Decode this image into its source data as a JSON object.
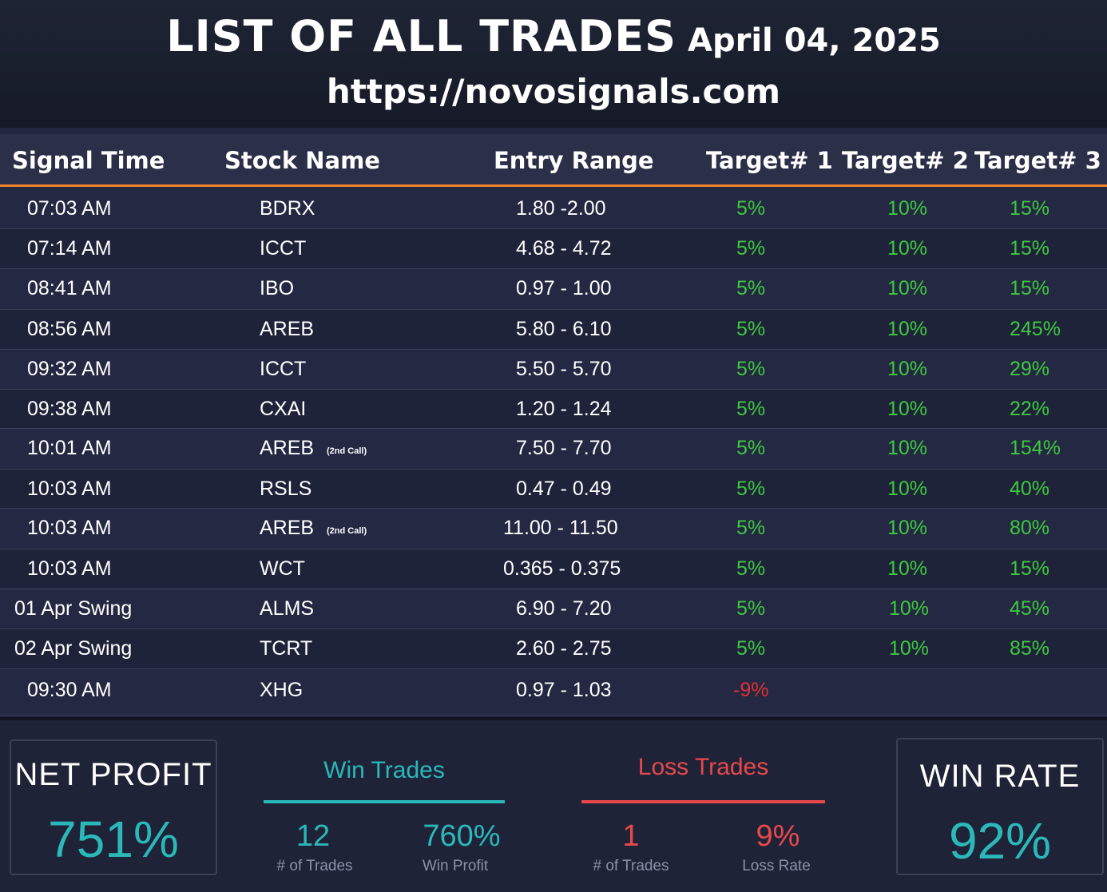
{
  "header": {
    "title": "LIST OF ALL TRADES",
    "date": "April 04, 2025",
    "url": "https://novosignals.com"
  },
  "table": {
    "columns": [
      "Signal Time",
      "Stock Name",
      "Entry Range",
      "Target# 1",
      "Target# 2",
      "Target# 3"
    ],
    "rows": [
      {
        "time": "07:03 AM",
        "stock": "BDRX",
        "note": "",
        "entry": "1.80 -2.00",
        "t1": "5%",
        "t2": "10%",
        "t3": "15%"
      },
      {
        "time": "07:14 AM",
        "stock": "ICCT",
        "note": "",
        "entry": "4.68 - 4.72",
        "t1": "5%",
        "t2": "10%",
        "t3": "15%"
      },
      {
        "time": "08:41 AM",
        "stock": "IBO",
        "note": "",
        "entry": "0.97 - 1.00",
        "t1": "5%",
        "t2": "10%",
        "t3": "15%"
      },
      {
        "time": "08:56 AM",
        "stock": "AREB",
        "note": "",
        "entry": "5.80 - 6.10",
        "t1": "5%",
        "t2": "10%",
        "t3": "245%"
      },
      {
        "time": "09:32 AM",
        "stock": "ICCT",
        "note": "",
        "entry": "5.50 - 5.70",
        "t1": "5%",
        "t2": "10%",
        "t3": "29%"
      },
      {
        "time": "09:38 AM",
        "stock": "CXAI",
        "note": "",
        "entry": "1.20 - 1.24",
        "t1": "5%",
        "t2": "10%",
        "t3": "22%"
      },
      {
        "time": "10:01 AM",
        "stock": "AREB",
        "note": "(2nd Call)",
        "entry": "7.50 - 7.70",
        "t1": "5%",
        "t2": "10%",
        "t3": "154%"
      },
      {
        "time": "10:03 AM",
        "stock": "RSLS",
        "note": "",
        "entry": "0.47 - 0.49",
        "t1": "5%",
        "t2": "10%",
        "t3": "40%"
      },
      {
        "time": "10:03 AM",
        "stock": "AREB",
        "note": "(2nd Call)",
        "entry": "11.00 - 11.50",
        "t1": "5%",
        "t2": "10%",
        "t3": "80%"
      },
      {
        "time": "10:03 AM",
        "stock": "WCT",
        "note": "",
        "entry": "0.365 - 0.375",
        "t1": "5%",
        "t2": "10%",
        "t3": "15%"
      },
      {
        "time": "01 Apr Swing",
        "stock": "ALMS",
        "note": "",
        "entry": "6.90 - 7.20",
        "t1": "5%",
        "t2": "10%",
        "t3": "45%"
      },
      {
        "time": "02 Apr Swing",
        "stock": "TCRT",
        "note": "",
        "entry": "2.60 - 2.75",
        "t1": "5%",
        "t2": "10%",
        "t3": "85%"
      },
      {
        "time": "09:30 AM",
        "stock": "XHG",
        "note": "",
        "entry": "0.97 - 1.03",
        "t1": "-9%",
        "t2": "",
        "t3": ""
      }
    ]
  },
  "summary": {
    "net_profit": {
      "label": "NET PROFIT",
      "value": "751%"
    },
    "win_trades": {
      "label": "Win Trades",
      "count": "12",
      "count_label": "# of Trades",
      "profit": "760%",
      "profit_label": "Win Profit"
    },
    "loss_trades": {
      "label": "Loss Trades",
      "count": "1",
      "count_label": "# of Trades",
      "rate": "9%",
      "rate_label": "Loss Rate"
    },
    "win_rate": {
      "label": "WIN RATE",
      "value": "92%"
    }
  },
  "colors": {
    "accent_orange": "#f0862a",
    "positive_green": "#3cc93e",
    "negative_red": "#e03030",
    "teal": "#2ab8b8",
    "loss_red": "#e8484a"
  }
}
